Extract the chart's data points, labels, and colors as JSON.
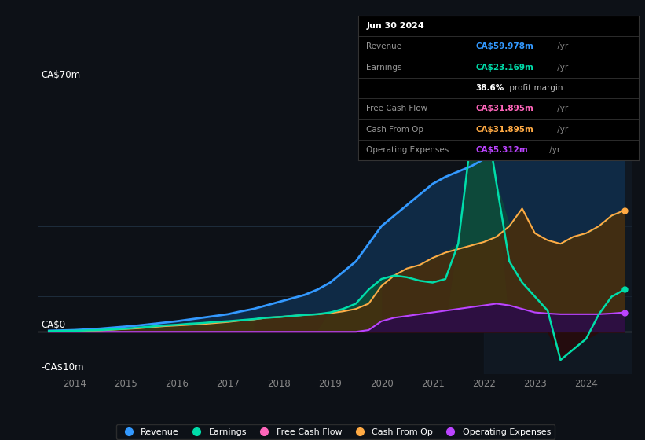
{
  "bg_color": "#0d1117",
  "plot_bg_color": "#0d1117",
  "ylabel_top": "CA$70m",
  "ylabel_zero": "CA$0",
  "ylabel_neg": "-CA$10m",
  "ylim": [
    -12,
    78
  ],
  "xlim_start": 2013.3,
  "xlim_end": 2024.9,
  "xticks": [
    2014,
    2015,
    2016,
    2017,
    2018,
    2019,
    2020,
    2021,
    2022,
    2023,
    2024
  ],
  "grid_color": "#1e2d3d",
  "zero_line_color": "#666666",
  "revenue_color": "#3399ff",
  "earnings_color": "#00ddaa",
  "fcf_color": "#ff66bb",
  "cashfromop_color": "#ffaa44",
  "opex_color": "#bb44ff",
  "revenue_fill": "#0f2a45",
  "earnings_fill_pos": "#0d4a3a",
  "earnings_fill_neg": "#3a1a1a",
  "cashfromop_fill": "#4a2e0a",
  "opex_fill": "#2a0a4a",
  "dark_panel_color": "#131d2a",
  "legend": [
    {
      "label": "Revenue",
      "color": "#3399ff"
    },
    {
      "label": "Earnings",
      "color": "#00ddaa"
    },
    {
      "label": "Free Cash Flow",
      "color": "#ff66bb"
    },
    {
      "label": "Cash From Op",
      "color": "#ffaa44"
    },
    {
      "label": "Operating Expenses",
      "color": "#bb44ff"
    }
  ],
  "tooltip_title": "Jun 30 2024",
  "tooltip_rows": [
    {
      "label": "Revenue",
      "value": "CA$59.978m /yr",
      "value_color": "#3399ff"
    },
    {
      "label": "Earnings",
      "value": "CA$23.169m /yr",
      "value_color": "#00ddaa"
    },
    {
      "label": "",
      "value": "38.6% profit margin",
      "value_color": "#cccccc"
    },
    {
      "label": "Free Cash Flow",
      "value": "CA$31.895m /yr",
      "value_color": "#ff66bb"
    },
    {
      "label": "Cash From Op",
      "value": "CA$31.895m /yr",
      "value_color": "#ffaa44"
    },
    {
      "label": "Operating Expenses",
      "value": "CA$5.312m /yr",
      "value_color": "#bb44ff"
    }
  ]
}
